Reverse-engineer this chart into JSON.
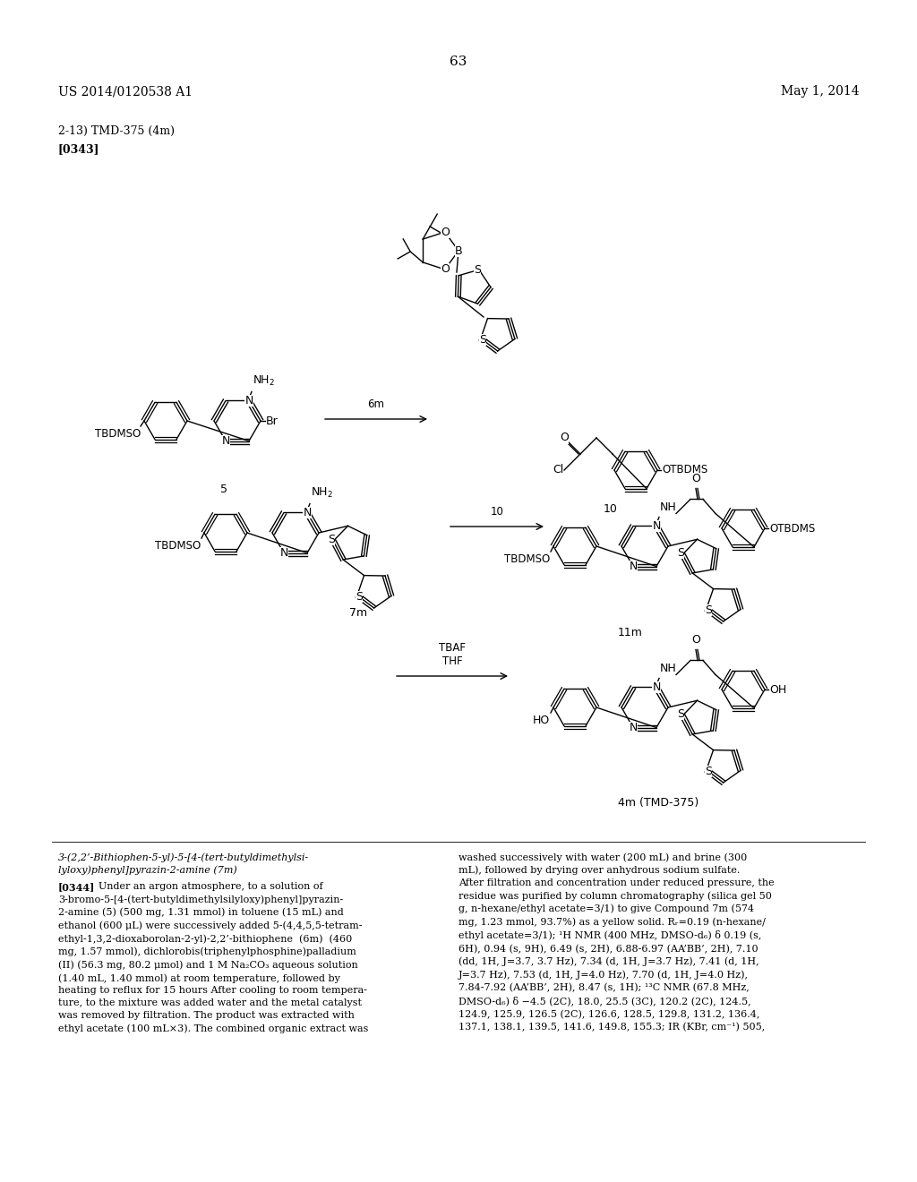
{
  "background_color": "#ffffff",
  "header_left": "US 2014/0120538 A1",
  "header_right": "May 1, 2014",
  "page_number": "63",
  "section_label": "2-13) TMD-375 (4m)",
  "section_ref": "[0343]",
  "body_text_left": "3-(2,2’-Bithiophen-5-yl)-5-[4-(tert-butyldimethylsi-\nlyloxy)phenyl]pyrazin-2-amine (7m)\n\n[0344] Under an argon atmosphere, to a solution of\n3-bromo-5-[4-(tert-butyldimethylsilyloxy)phenyl]pyrazin-\n2-amine (5) (500 mg, 1.31 mmol) in toluene (15 mL) and\nethanol (600 μL) were successively added 5-(4,4,5,5-tetram-\nethyl-1,3,2-dioxaborolan-2-yl)-2,2’-bithiophene  (6m)  (460\nmg, 1.57 mmol), dichlorobis(triphenylphosphine)palladium\n(II) (56.3 mg, 80.2 μmol) and 1 M Na₂CO₃ aqueous solution\n(1.40 mL, 1.40 mmol) at room temperature, followed by\nheating to reflux for 15 hours After cooling to room tempera-\nture, to the mixture was added water and the metal catalyst\nwas removed by filtration. The product was extracted with\nethyl acetate (100 mL×3). The combined organic extract was",
  "body_text_right": "washed successively with water (200 mL) and brine (300\nmL), followed by drying over anhydrous sodium sulfate.\nAfter filtration and concentration under reduced pressure, the\nresidue was purified by column chromatography (silica gel 50\ng, n-hexane/ethyl acetate=3/1) to give Compound 7m (574\nmg, 1.23 mmol, 93.7%) as a yellow solid. Rᵣ=0.19 (n-hexane/\nethyl acetate=3/1); ¹H NMR (400 MHz, DMSO-d₆) δ 0.19 (s,\n6H), 0.94 (s, 9H), 6.49 (s, 2H), 6.88-6.97 (AA’BB’, 2H), 7.10\n(dd, 1H, J=3.7, 3.7 Hz), 7.34 (d, 1H, J=3.7 Hz), 7.41 (d, 1H,\nJ=3.7 Hz), 7.53 (d, 1H, J=4.0 Hz), 7.70 (d, 1H, J=4.0 Hz),\n7.84-7.92 (AA’BB’, 2H), 8.47 (s, 1H); ¹³C NMR (67.8 MHz,\nDMSO-d₆) δ −4.5 (2C), 18.0, 25.5 (3C), 120.2 (2C), 124.5,\n124.9, 125.9, 126.5 (2C), 126.6, 128.5, 129.8, 131.2, 136.4,\n137.1, 138.1, 139.5, 141.6, 149.8, 155.3; IR (KBr, cm⁻¹) 505,"
}
